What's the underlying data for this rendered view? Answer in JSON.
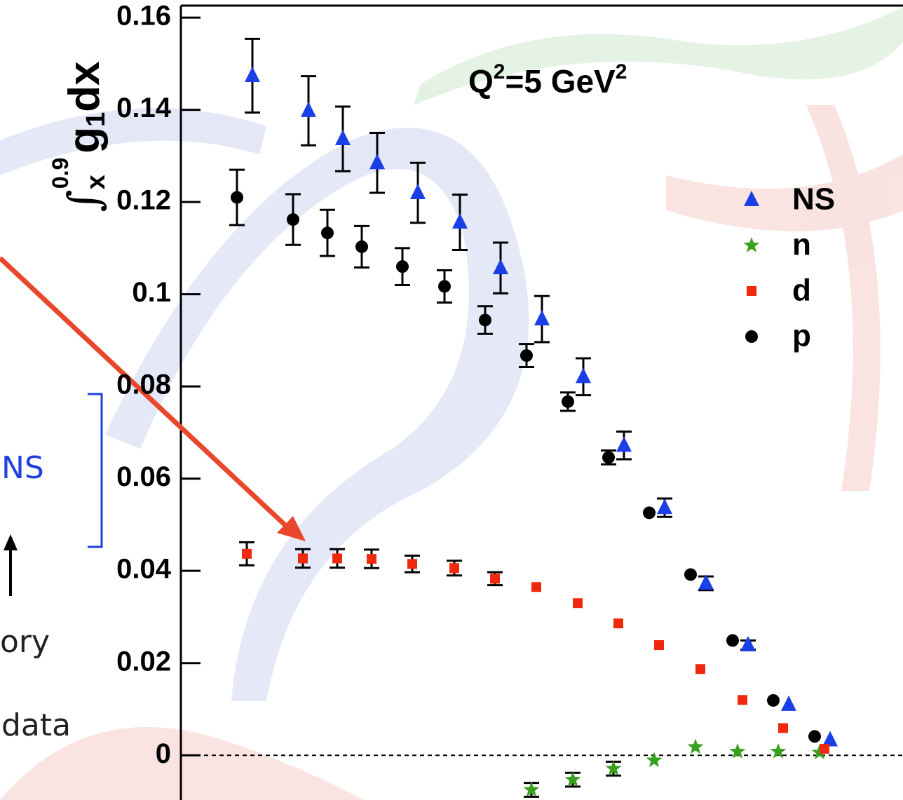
{
  "chart_data": {
    "type": "scatter",
    "ylabel_parts": [
      "∫",
      "x",
      "0.9",
      "g",
      "1",
      "dx"
    ],
    "annotation_parts": [
      "Q",
      "2",
      "=5 GeV",
      "2"
    ],
    "side_texts": [
      "NS",
      "ory",
      "data"
    ],
    "categories": [
      null,
      null,
      null,
      null,
      null,
      null,
      null,
      null,
      null,
      null,
      null,
      null,
      null,
      null,
      null
    ],
    "ylim": [
      -0.0097,
      0.1626
    ],
    "yticks": [
      0,
      0.02,
      0.04,
      0.06,
      0.08,
      0.1,
      0.12,
      0.14,
      0.16
    ],
    "zero_line": true,
    "legend": "top-right",
    "series": [
      {
        "name": "NS",
        "color": "#1a3fe6",
        "marker": "triangle",
        "values": [
          0.1474,
          0.1398,
          0.1337,
          0.1285,
          0.122,
          0.1156,
          0.1057,
          0.0946,
          0.0821,
          0.0672,
          0.0537,
          0.0373,
          0.0239,
          0.011,
          0.0033
        ],
        "errors": [
          0.008,
          0.0075,
          0.007,
          0.0065,
          0.0065,
          0.006,
          0.0055,
          0.005,
          0.004,
          0.003,
          0.002,
          0.0015,
          0.001,
          null,
          null
        ]
      },
      {
        "name": "n",
        "color": "#3aa01e",
        "marker": "star",
        "values": [
          null,
          null,
          null,
          null,
          null,
          null,
          null,
          -0.0075,
          -0.0053,
          -0.0029,
          -0.0011,
          0.0018,
          0.0008,
          0.0008,
          0.0006
        ],
        "errors": [
          null,
          null,
          null,
          null,
          null,
          null,
          null,
          0.0015,
          0.0015,
          0.0015,
          null,
          null,
          null,
          null,
          null
        ]
      },
      {
        "name": "d",
        "color": "#f0290e",
        "marker": "square",
        "values": [
          0.0437,
          0.0427,
          0.0427,
          0.0426,
          0.0415,
          0.0406,
          0.0383,
          0.0365,
          0.033,
          0.0286,
          0.0239,
          0.0187,
          0.012,
          0.0059,
          0.0014
        ],
        "errors": [
          0.0025,
          0.002,
          0.002,
          0.002,
          0.0018,
          0.0016,
          0.0014,
          null,
          null,
          null,
          null,
          null,
          null,
          null,
          null
        ]
      },
      {
        "name": "p",
        "color": "#000000",
        "marker": "circle",
        "values": [
          0.121,
          0.1162,
          0.1133,
          0.1103,
          0.106,
          0.1017,
          0.0944,
          0.0867,
          0.0767,
          0.0646,
          0.0526,
          0.0392,
          0.0249,
          0.0119,
          0.0041
        ],
        "errors": [
          0.006,
          0.0055,
          0.005,
          0.0045,
          0.004,
          0.0035,
          0.003,
          0.0025,
          0.002,
          0.0015,
          null,
          null,
          null,
          null,
          null
        ]
      }
    ]
  }
}
